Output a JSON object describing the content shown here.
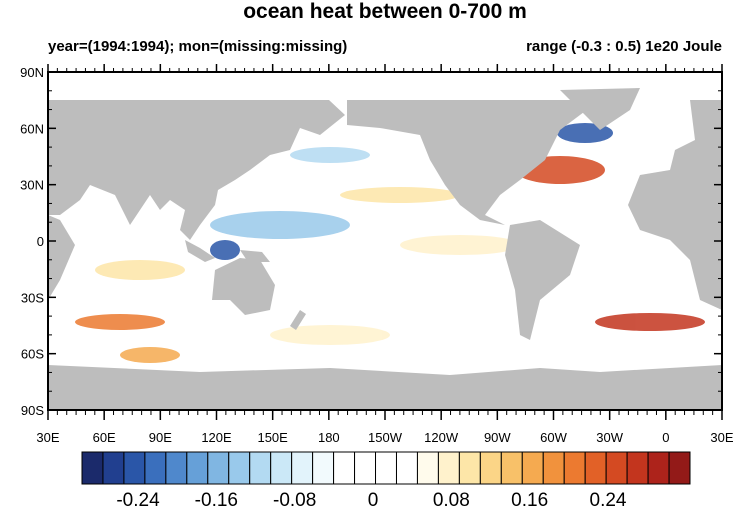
{
  "title": "ocean heat between 0-700 m",
  "subtitle_left": "year=(1994:1994); mon=(missing:missing)",
  "subtitle_right": "range (-0.3 : 0.5) 1e20 Joule",
  "map": {
    "lat_labels": [
      "90N",
      "60N",
      "30N",
      "0",
      "30S",
      "60S",
      "90S"
    ],
    "lon_labels": [
      "30E",
      "60E",
      "90E",
      "120E",
      "150E",
      "180",
      "150W",
      "120W",
      "90W",
      "60W",
      "30W",
      "0",
      "30E"
    ],
    "land_color": "#bdbdbd"
  },
  "colorbar": {
    "colors": [
      "#1b2a6b",
      "#213f8f",
      "#2a56a8",
      "#3a6fbd",
      "#4f88cc",
      "#66a0d8",
      "#80b6e2",
      "#99c9eb",
      "#b3daf2",
      "#cbe8f7",
      "#e2f3fb",
      "#f2fafd",
      "#ffffff",
      "#ffffff",
      "#ffffff",
      "#ffffff",
      "#fffbec",
      "#fff2cc",
      "#fde6a8",
      "#fbd587",
      "#f8c169",
      "#f5aa50",
      "#f1923d",
      "#ec7a30",
      "#e26127",
      "#d44a22",
      "#c3351e",
      "#ad231b",
      "#931a18"
    ],
    "labels": [
      -0.24,
      -0.16,
      -0.08,
      0,
      0.08,
      0.16,
      0.24
    ]
  }
}
